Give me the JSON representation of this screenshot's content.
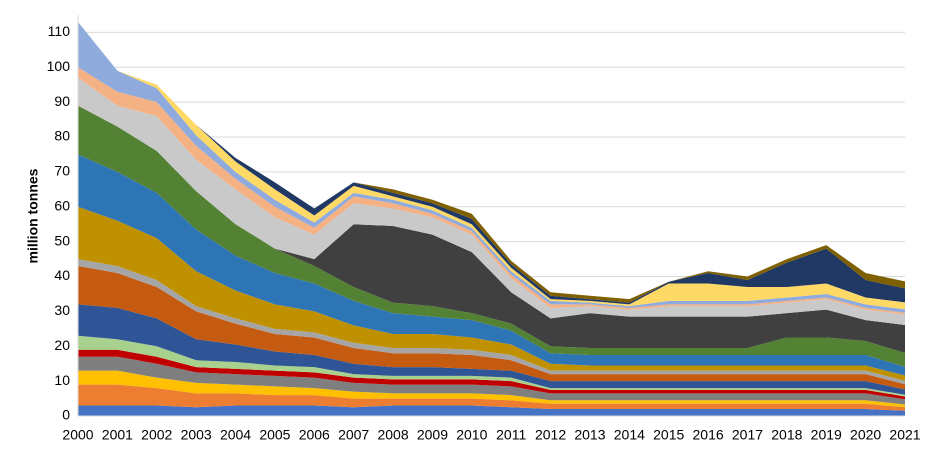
{
  "chart_data": {
    "type": "area",
    "stacked": true,
    "y_label": "million tonnes",
    "categories": [
      "2000",
      "2001",
      "2002",
      "2003",
      "2004",
      "2005",
      "2006",
      "2007",
      "2008",
      "2009",
      "2010",
      "2011",
      "2012",
      "2013",
      "2014",
      "2015",
      "2016",
      "2017",
      "2018",
      "2019",
      "2020",
      "2021"
    ],
    "ylim": [
      0,
      115
    ],
    "yticks": [
      0,
      10,
      20,
      30,
      40,
      50,
      60,
      70,
      80,
      90,
      100,
      110
    ],
    "grid": true,
    "series": [
      {
        "color": "#4472c4",
        "values": [
          3,
          3,
          3,
          2.5,
          3,
          3,
          3,
          2.5,
          3,
          3,
          3,
          2.5,
          2,
          2,
          2,
          2,
          2,
          2,
          2,
          2,
          2,
          1.5
        ]
      },
      {
        "color": "#ed7d31",
        "values": [
          6,
          6,
          5,
          4,
          3.5,
          3,
          3,
          2.5,
          2,
          2,
          2,
          2,
          1.5,
          1.5,
          1.5,
          1.5,
          1.5,
          1.5,
          1.5,
          1.5,
          1.5,
          1
        ]
      },
      {
        "color": "#ffc000",
        "values": [
          4,
          4,
          3,
          3,
          2.5,
          2.5,
          2,
          2,
          1.5,
          1.5,
          1.5,
          1.5,
          1,
          1,
          1,
          1,
          1,
          1,
          1,
          1,
          1,
          0.8
        ]
      },
      {
        "color": "#7f7f7f",
        "values": [
          4,
          4,
          4,
          3,
          3,
          3,
          3,
          2.5,
          2.5,
          2.5,
          2.5,
          2.5,
          2,
          2,
          2,
          2,
          2,
          2,
          2,
          2,
          2,
          1.5
        ]
      },
      {
        "color": "#c00000",
        "values": [
          2,
          2,
          2,
          1.5,
          1.5,
          1.5,
          1.5,
          1.5,
          1.5,
          1.5,
          1.5,
          1.5,
          1,
          1,
          1,
          1,
          1,
          1,
          1,
          1,
          1,
          0.8
        ]
      },
      {
        "color": "#a9d18e",
        "values": [
          4,
          3,
          3,
          2,
          2,
          1.5,
          1.5,
          1,
          1,
          1,
          1,
          1,
          0.5,
          0.5,
          0.5,
          0.5,
          0.5,
          0.5,
          0.5,
          0.5,
          0.5,
          0.5
        ]
      },
      {
        "color": "#2f5597",
        "values": [
          9,
          9,
          8,
          6,
          5,
          4,
          3.5,
          3,
          2.5,
          2.5,
          2,
          2,
          2,
          2,
          2,
          2,
          2,
          2,
          2,
          2,
          2,
          1.5
        ]
      },
      {
        "color": "#c55a11",
        "values": [
          11,
          10,
          9,
          8,
          6,
          5,
          5,
          4.5,
          4,
          4,
          4,
          3,
          2,
          2,
          2,
          2,
          2,
          2,
          2,
          2,
          2,
          1.5
        ]
      },
      {
        "color": "#a5a5a5",
        "values": [
          2,
          2,
          2,
          1.5,
          1.5,
          1.5,
          1.5,
          1.5,
          1.5,
          1.5,
          1.5,
          1.5,
          1,
          1,
          1,
          1,
          1,
          1,
          1,
          1,
          1,
          1
        ]
      },
      {
        "color": "#bf9000",
        "values": [
          15,
          13,
          12,
          10,
          8,
          7,
          6,
          5,
          4,
          4,
          3.5,
          3,
          2,
          1.5,
          1.5,
          1.5,
          1.5,
          1.5,
          1.5,
          1.5,
          1.5,
          1.5
        ]
      },
      {
        "color": "#2e75b6",
        "values": [
          15,
          14,
          13,
          12,
          10,
          9,
          8,
          7,
          6,
          5,
          5,
          4,
          3,
          3,
          3,
          3,
          3,
          3,
          3,
          3,
          3,
          2.5
        ]
      },
      {
        "color": "#548235",
        "values": [
          14,
          13,
          12,
          11,
          9,
          7,
          5,
          4,
          3,
          3,
          2,
          2,
          2,
          2,
          2,
          2,
          2,
          2,
          5,
          5,
          4,
          4
        ]
      },
      {
        "color": "#404040",
        "values": [
          0,
          0,
          0,
          0,
          0,
          0,
          2,
          18,
          22,
          20.5,
          17.5,
          9,
          8,
          10,
          9,
          9,
          9,
          9,
          7,
          8,
          6,
          8
        ]
      },
      {
        "color": "#c9c9c9",
        "values": [
          8,
          6,
          10,
          9,
          10,
          9,
          7,
          6,
          5,
          5,
          5,
          4,
          3,
          2,
          2,
          3,
          3,
          3,
          3,
          3,
          3,
          3
        ]
      },
      {
        "color": "#f4b183",
        "values": [
          3,
          4,
          4,
          4,
          3,
          3,
          2,
          2,
          1.5,
          1,
          1,
          1,
          1,
          0.5,
          0.5,
          0.5,
          0.5,
          0.5,
          0.5,
          0.5,
          0.5,
          0.5
        ]
      },
      {
        "color": "#8faadc",
        "values": [
          13,
          6,
          4,
          3,
          2,
          2,
          1.5,
          1,
          1,
          1,
          1,
          1,
          1,
          0.5,
          0.5,
          1,
          1,
          1,
          1,
          1,
          1,
          1
        ]
      },
      {
        "color": "#ffd966",
        "values": [
          0,
          0,
          1,
          3,
          3,
          3,
          2,
          2,
          1,
          1,
          1,
          1,
          0.5,
          0.5,
          0.5,
          5,
          5,
          4,
          3,
          3,
          2,
          2
        ]
      },
      {
        "color": "#203864",
        "values": [
          0,
          0,
          0,
          0,
          1,
          2,
          2,
          1,
          1,
          1,
          1.5,
          1,
          1,
          0.5,
          0.5,
          0.5,
          3,
          2,
          7,
          10,
          5,
          4
        ]
      },
      {
        "color": "#7f6000",
        "values": [
          0,
          0,
          0,
          0,
          0,
          0,
          0,
          0,
          1,
          1,
          1.5,
          1,
          1,
          1,
          1,
          0,
          0.5,
          1,
          1,
          1,
          2,
          2
        ]
      }
    ]
  }
}
